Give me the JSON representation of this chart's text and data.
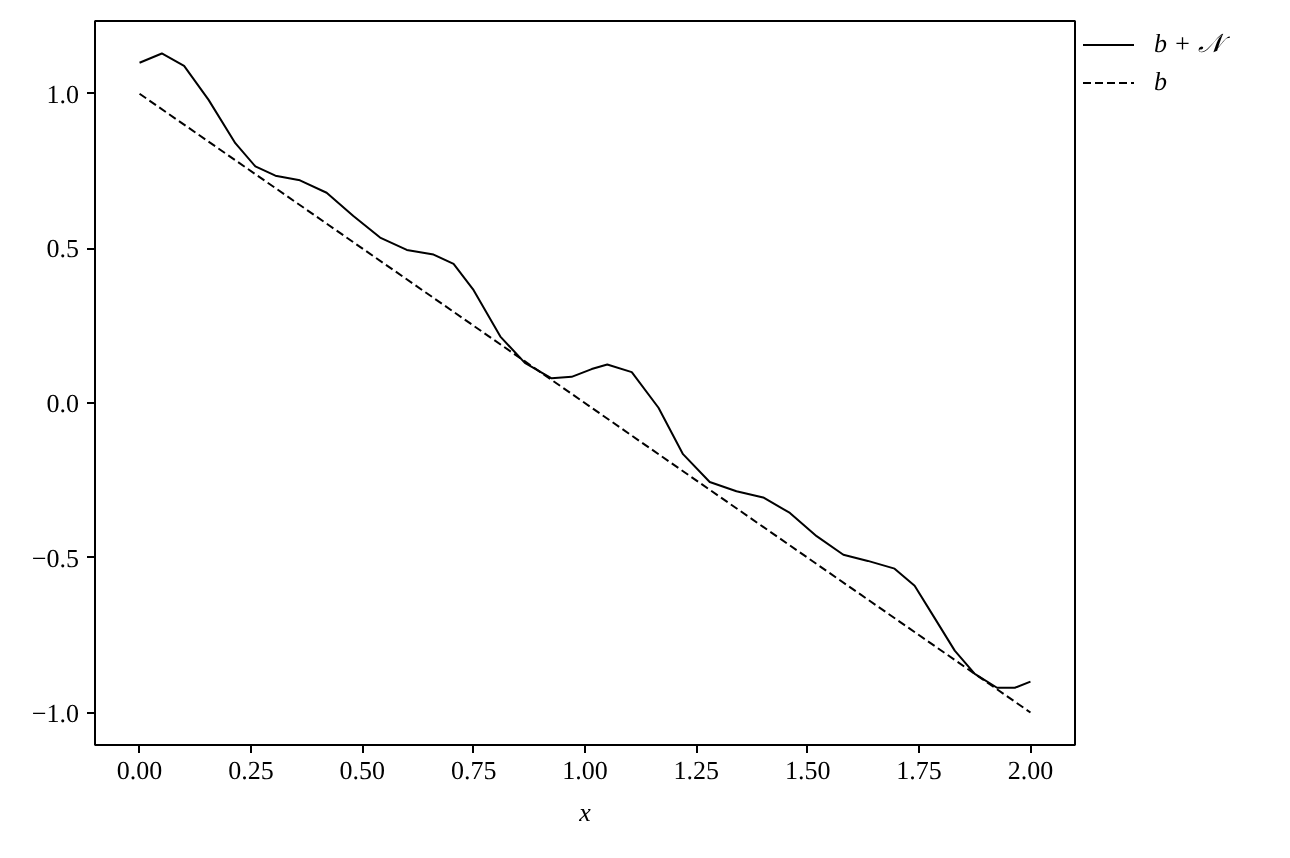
{
  "chart_data": {
    "type": "line",
    "xlabel": "x",
    "series": [
      {
        "name": "b + 𝒩",
        "color": "#000000",
        "line_style": "solid",
        "x": [
          0,
          0.05,
          0.1,
          0.155,
          0.215,
          0.26,
          0.305,
          0.36,
          0.42,
          0.48,
          0.54,
          0.6,
          0.66,
          0.705,
          0.75,
          0.81,
          0.865,
          0.925,
          0.97,
          1.015,
          1.05,
          1.105,
          1.165,
          1.22,
          1.28,
          1.34,
          1.4,
          1.46,
          1.52,
          1.58,
          1.635,
          1.695,
          1.74,
          1.785,
          1.83,
          1.875,
          1.925,
          1.965,
          2.0
        ],
        "values": [
          1.1,
          1.13,
          1.09,
          0.98,
          0.84,
          0.765,
          0.735,
          0.72,
          0.68,
          0.605,
          0.535,
          0.495,
          0.48,
          0.45,
          0.365,
          0.215,
          0.13,
          0.08,
          0.085,
          0.11,
          0.125,
          0.1,
          -0.015,
          -0.165,
          -0.255,
          -0.285,
          -0.305,
          -0.355,
          -0.43,
          -0.49,
          -0.51,
          -0.535,
          -0.59,
          -0.695,
          -0.8,
          -0.875,
          -0.92,
          -0.92,
          -0.9
        ]
      },
      {
        "name": "b",
        "color": "#000000",
        "line_style": "dashed",
        "x": [
          0,
          2
        ],
        "values": [
          1,
          -1
        ]
      }
    ],
    "xlim": [
      -0.1,
      2.1
    ],
    "ylim": [
      -1.105,
      1.235
    ],
    "xticks": [
      {
        "value": 0,
        "label": "0.00"
      },
      {
        "value": 0.25,
        "label": "0.25"
      },
      {
        "value": 0.5,
        "label": "0.50"
      },
      {
        "value": 0.75,
        "label": "0.75"
      },
      {
        "value": 1,
        "label": "1.00"
      },
      {
        "value": 1.25,
        "label": "1.25"
      },
      {
        "value": 1.5,
        "label": "1.50"
      },
      {
        "value": 1.75,
        "label": "1.75"
      },
      {
        "value": 2,
        "label": "2.00"
      }
    ],
    "yticks": [
      {
        "value": -1,
        "label": "−1.0"
      },
      {
        "value": -0.5,
        "label": "−0.5"
      },
      {
        "value": 0,
        "label": "0.0"
      },
      0.5,
      {
        "value": 1,
        "label": "1.0"
      }
    ],
    "legend": "top right"
  }
}
